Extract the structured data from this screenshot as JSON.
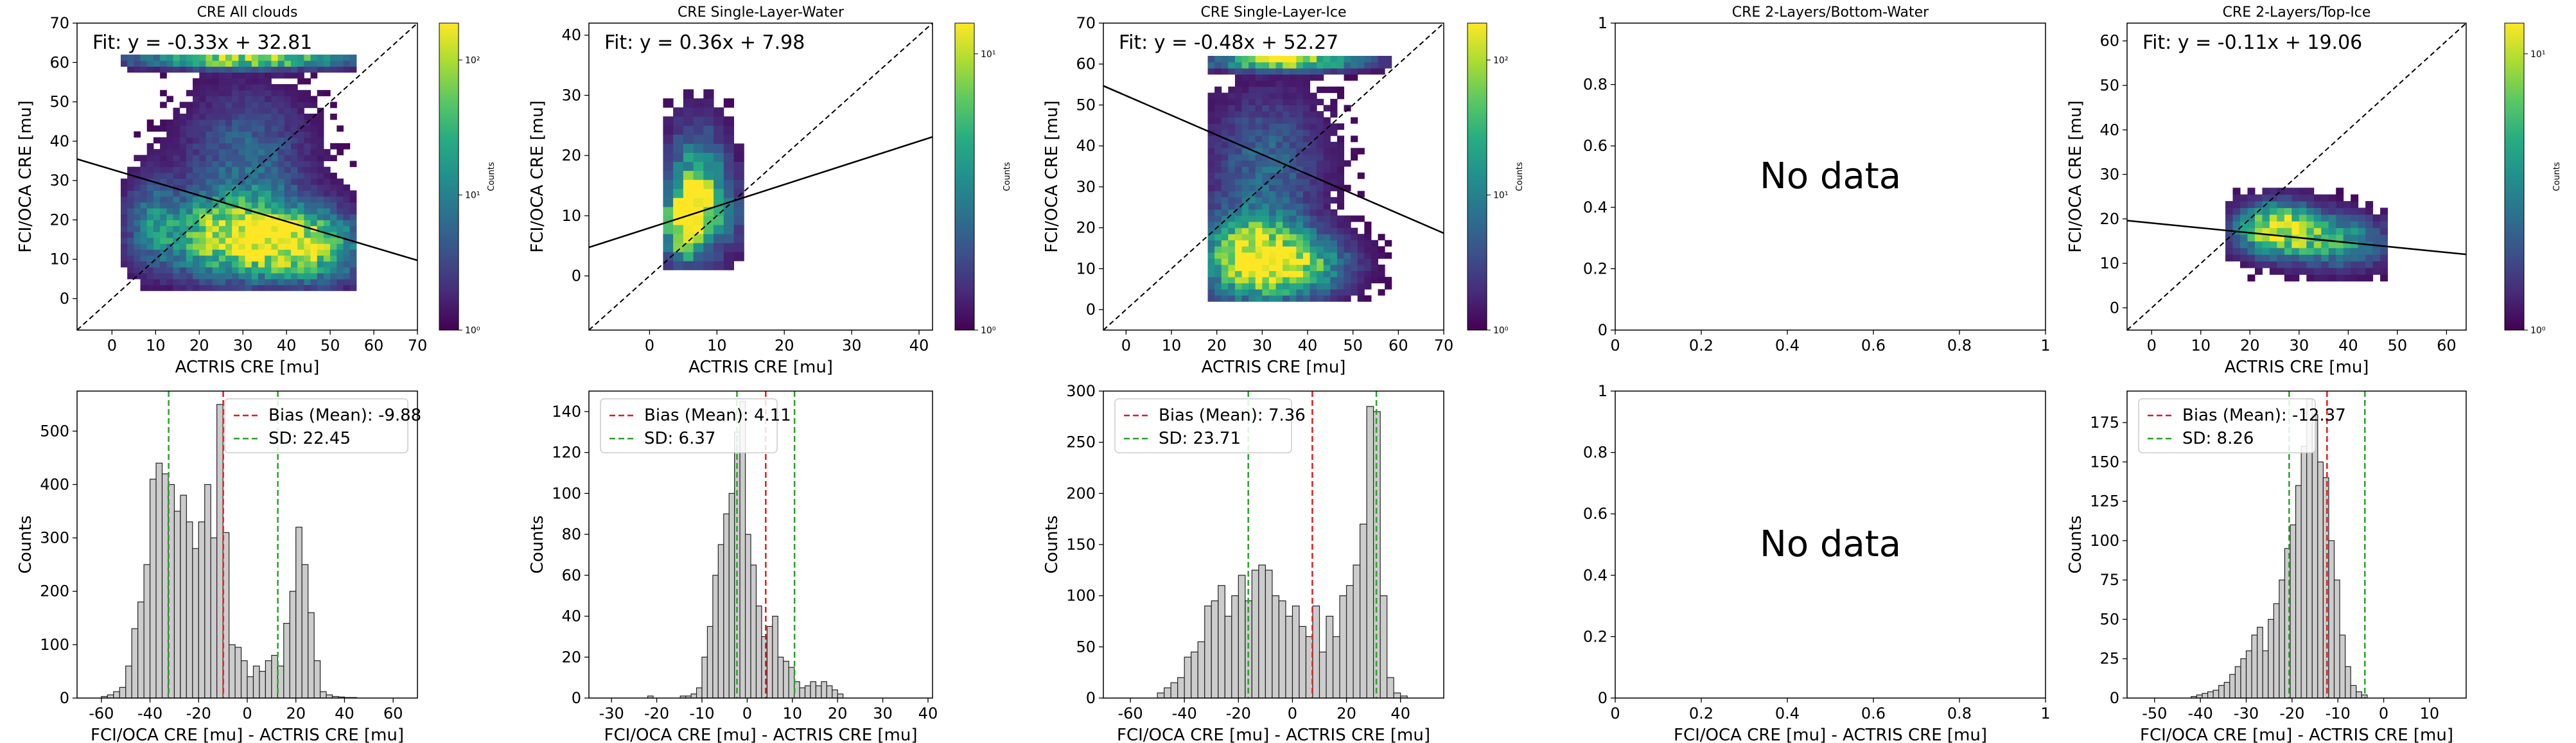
{
  "colors": {
    "bar_fill": "#cccccc",
    "bar_edge": "#222222",
    "bias_line": "#e41a1c",
    "sd_line": "#2ca02c",
    "fit_line": "#000000",
    "viridis": [
      "#440154",
      "#472c7a",
      "#3b518b",
      "#2c718e",
      "#21908d",
      "#27ad81",
      "#5cc863",
      "#aadc32",
      "#fde725"
    ]
  },
  "no_data_text": "No data",
  "chart_data": [
    {
      "type": "heatmap",
      "row": 0,
      "col": 0,
      "title": "CRE All clouds",
      "xlabel": "ACTRIS CRE [mu]",
      "ylabel": "FCI/OCA CRE [mu]",
      "xlim": [
        -8,
        70
      ],
      "ylim": [
        -8,
        70
      ],
      "xticks": [
        0,
        10,
        20,
        30,
        40,
        50,
        60,
        70
      ],
      "yticks": [
        0,
        10,
        20,
        30,
        40,
        50,
        60,
        70
      ],
      "fit_label": "Fit: y = -0.33x + 32.81",
      "fit": {
        "slope": -0.33,
        "intercept": 32.81
      },
      "colorbar": {
        "label": "Counts",
        "ticks": [
          "10⁰",
          "10¹",
          "10²"
        ]
      },
      "density": {
        "blobs": [
          [
            28,
            15,
            12,
            7,
            1.0
          ],
          [
            45,
            12,
            9,
            6,
            0.65
          ],
          [
            30,
            35,
            10,
            12,
            0.35
          ],
          [
            8,
            20,
            4,
            8,
            0.3
          ],
          [
            30,
            60,
            18,
            1.5,
            0.9
          ]
        ],
        "xr": [
          2,
          56
        ],
        "yr": [
          2,
          61
        ]
      }
    },
    {
      "type": "heatmap",
      "row": 0,
      "col": 1,
      "title": "CRE Single-Layer-Water",
      "xlabel": "ACTRIS CRE [mu]",
      "ylabel": "FCI/OCA CRE [mu]",
      "xlim": [
        -9,
        42
      ],
      "ylim": [
        -9,
        42
      ],
      "xticks": [
        0,
        10,
        20,
        30,
        40
      ],
      "yticks": [
        0,
        10,
        20,
        30,
        40
      ],
      "fit_label": "Fit: y = 0.36x + 7.98",
      "fit": {
        "slope": 0.36,
        "intercept": 7.98
      },
      "colorbar": {
        "label": "Counts",
        "ticks": [
          "10⁰",
          "10¹"
        ]
      },
      "density": {
        "blobs": [
          [
            4.5,
            8,
            2,
            4,
            1.0
          ],
          [
            6,
            15,
            3,
            7,
            0.55
          ],
          [
            9,
            10,
            3,
            5,
            0.4
          ]
        ],
        "xr": [
          2,
          14
        ],
        "yr": [
          1,
          32
        ]
      }
    },
    {
      "type": "heatmap",
      "row": 0,
      "col": 2,
      "title": "CRE Single-Layer-Ice",
      "xlabel": "ACTRIS CRE [mu]",
      "ylabel": "FCI/OCA CRE [mu]",
      "xlim": [
        -5,
        70
      ],
      "ylim": [
        -5,
        70
      ],
      "xticks": [
        0,
        10,
        20,
        30,
        40,
        50,
        60,
        70
      ],
      "yticks": [
        0,
        10,
        20,
        30,
        40,
        50,
        60,
        70
      ],
      "fit_label": "Fit: y = -0.48x + 52.27",
      "fit": {
        "slope": -0.48,
        "intercept": 52.27
      },
      "colorbar": {
        "label": "Counts",
        "ticks": [
          "10⁰",
          "10¹",
          "10²"
        ]
      },
      "density": {
        "blobs": [
          [
            27,
            12,
            8,
            7,
            1.0
          ],
          [
            38,
            10,
            8,
            5,
            0.6
          ],
          [
            30,
            35,
            9,
            12,
            0.35
          ],
          [
            35,
            60,
            12,
            1.5,
            0.95
          ]
        ],
        "xr": [
          18,
          58
        ],
        "yr": [
          2,
          61
        ]
      }
    },
    {
      "type": "heatmap",
      "row": 0,
      "col": 3,
      "empty": true,
      "title": "CRE 2-Layers/Bottom-Water",
      "xlim": [
        0,
        1
      ],
      "ylim": [
        0,
        1
      ],
      "xticks": [
        0.0,
        0.2,
        0.4,
        0.6,
        0.8,
        1.0
      ],
      "yticks": [
        0.0,
        0.2,
        0.4,
        0.6,
        0.8,
        1.0
      ]
    },
    {
      "type": "heatmap",
      "row": 0,
      "col": 4,
      "title": "CRE 2-Layers/Top-Ice",
      "xlabel": "ACTRIS CRE [mu]",
      "ylabel": "FCI/OCA CRE [mu]",
      "xlim": [
        -5,
        64
      ],
      "ylim": [
        -5,
        64
      ],
      "xticks": [
        0,
        10,
        20,
        30,
        40,
        50,
        60
      ],
      "yticks": [
        0,
        10,
        20,
        30,
        40,
        50,
        60
      ],
      "fit_label": "Fit: y = -0.11x + 19.06",
      "fit": {
        "slope": -0.11,
        "intercept": 19.06
      },
      "colorbar": {
        "label": "Counts",
        "ticks": [
          "10⁰",
          "10¹"
        ]
      },
      "density": {
        "blobs": [
          [
            25,
            17,
            6,
            4,
            1.0
          ],
          [
            38,
            14,
            7,
            4,
            0.55
          ]
        ],
        "xr": [
          15,
          48
        ],
        "yr": [
          6,
          27
        ]
      }
    },
    {
      "type": "bar",
      "row": 1,
      "col": 0,
      "xlabel": "FCI/OCA CRE [mu] - ACTRIS CRE [mu]",
      "ylabel": "Counts",
      "xlim": [
        -70,
        70
      ],
      "ylim": [
        0,
        575
      ],
      "xticks": [
        -60,
        -40,
        -20,
        0,
        20,
        40,
        60
      ],
      "yticks": [
        0,
        100,
        200,
        300,
        400,
        500
      ],
      "bias": -9.88,
      "sd": 22.45,
      "legend": [
        "Bias (Mean): -9.88",
        "SD: 22.45"
      ],
      "bin_start": -60,
      "bin_width": 2.5,
      "values": [
        3,
        6,
        12,
        20,
        60,
        130,
        180,
        250,
        410,
        440,
        420,
        400,
        350,
        380,
        330,
        280,
        330,
        400,
        300,
        550,
        310,
        100,
        95,
        70,
        40,
        60,
        50,
        70,
        80,
        60,
        140,
        200,
        320,
        250,
        160,
        70,
        12,
        6,
        3,
        2,
        1,
        1
      ]
    },
    {
      "type": "bar",
      "row": 1,
      "col": 1,
      "xlabel": "FCI/OCA CRE [mu] - ACTRIS CRE [mu]",
      "ylabel": "Counts",
      "xlim": [
        -35,
        41
      ],
      "ylim": [
        0,
        150
      ],
      "xticks": [
        -30,
        -20,
        -10,
        0,
        10,
        20,
        30,
        40
      ],
      "yticks": [
        0,
        20,
        40,
        60,
        80,
        100,
        120,
        140
      ],
      "bias": 4.11,
      "sd": 6.37,
      "legend": [
        "Bias (Mean): 4.11",
        "SD: 6.37"
      ],
      "bin_start": -22,
      "bin_width": 1.2,
      "values": [
        1,
        0,
        0,
        0,
        0,
        0,
        1,
        1,
        2,
        5,
        20,
        35,
        60,
        75,
        90,
        100,
        130,
        145,
        80,
        65,
        45,
        30,
        35,
        40,
        20,
        18,
        15,
        8,
        5,
        6,
        8,
        6,
        8,
        6,
        4,
        2
      ]
    },
    {
      "type": "bar",
      "row": 1,
      "col": 2,
      "xlabel": "FCI/OCA CRE [mu] - ACTRIS CRE [mu]",
      "ylabel": "Counts",
      "xlim": [
        -70,
        56
      ],
      "ylim": [
        0,
        300
      ],
      "xticks": [
        -60,
        -40,
        -20,
        0,
        20,
        40
      ],
      "yticks": [
        0,
        50,
        100,
        150,
        200,
        250,
        300
      ],
      "bias": 7.36,
      "sd": 23.71,
      "legend": [
        "Bias (Mean): 7.36",
        "SD: 23.71"
      ],
      "bin_start": -50,
      "bin_width": 2.5,
      "values": [
        5,
        10,
        15,
        20,
        40,
        45,
        55,
        90,
        95,
        110,
        80,
        100,
        120,
        95,
        125,
        130,
        125,
        100,
        95,
        80,
        90,
        70,
        60,
        90,
        45,
        80,
        60,
        100,
        110,
        130,
        170,
        285,
        280,
        100,
        20,
        5,
        2
      ]
    },
    {
      "type": "bar",
      "row": 1,
      "col": 3,
      "empty": true,
      "xlabel": "FCI/OCA CRE [mu] - ACTRIS CRE [mu]",
      "xlim": [
        0,
        1
      ],
      "ylim": [
        0,
        1
      ],
      "xticks": [
        0.0,
        0.2,
        0.4,
        0.6,
        0.8,
        1.0
      ],
      "yticks": [
        0.0,
        0.2,
        0.4,
        0.6,
        0.8,
        1.0
      ]
    },
    {
      "type": "bar",
      "row": 1,
      "col": 4,
      "xlabel": "FCI/OCA CRE [mu] - ACTRIS CRE [mu]",
      "ylabel": "Counts",
      "xlim": [
        -56,
        18
      ],
      "ylim": [
        0,
        195
      ],
      "xticks": [
        -50,
        -40,
        -30,
        -20,
        -10,
        0,
        10
      ],
      "yticks": [
        0,
        25,
        50,
        75,
        100,
        125,
        150,
        175
      ],
      "bias": -12.37,
      "sd": 8.26,
      "legend": [
        "Bias (Mean): -12.37",
        "SD: 8.26"
      ],
      "bin_start": -42,
      "bin_width": 1.2,
      "values": [
        1,
        2,
        3,
        4,
        5,
        8,
        10,
        15,
        20,
        25,
        30,
        40,
        45,
        30,
        50,
        60,
        75,
        95,
        110,
        135,
        160,
        190,
        180,
        150,
        140,
        100,
        75,
        40,
        20,
        8,
        4,
        2
      ]
    }
  ]
}
